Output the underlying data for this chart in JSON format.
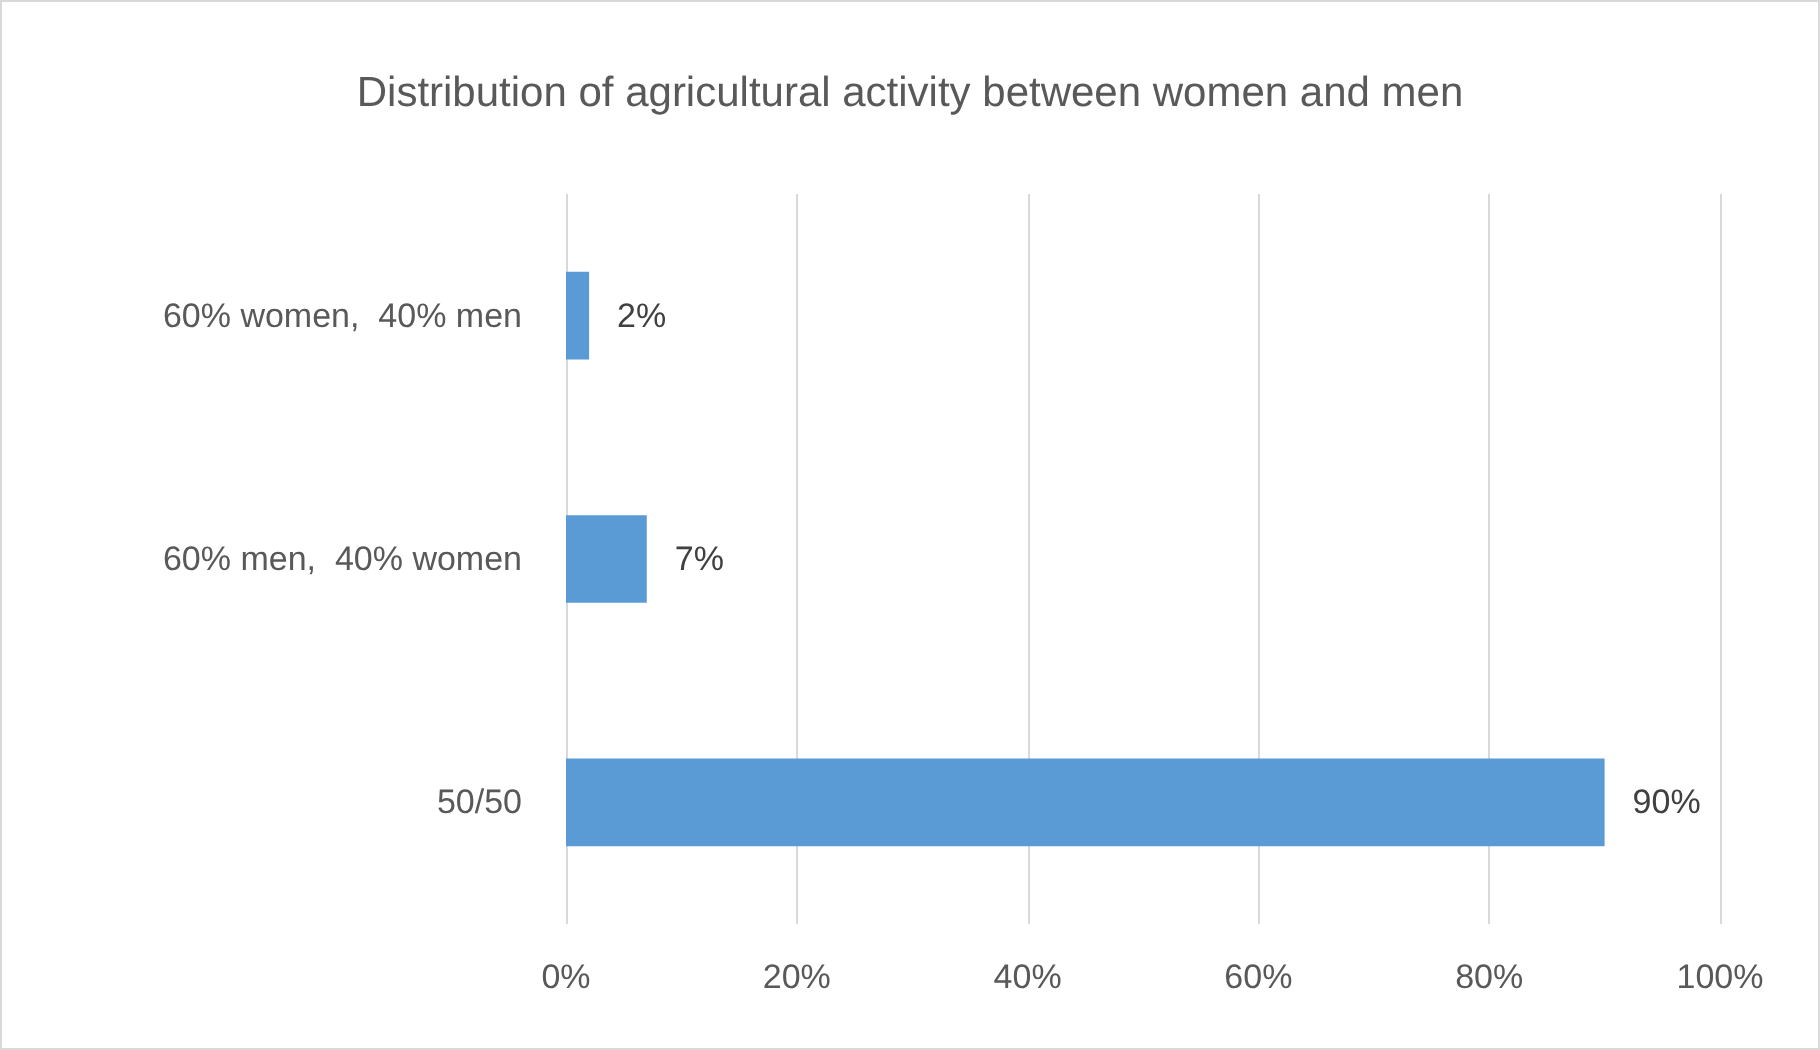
{
  "chart_data": {
    "type": "bar",
    "orientation": "horizontal",
    "title": "Distribution of agricultural activity between women and men",
    "categories": [
      "60% women,  40% men",
      "60% men,  40% women",
      "50/50"
    ],
    "values": [
      2,
      7,
      90
    ],
    "color": "#5b9bd5",
    "value_labels": [
      "2%",
      "7%",
      "90%"
    ],
    "xlim": [
      0,
      100
    ],
    "xticks": [
      {
        "value": 0,
        "label": "0%"
      },
      {
        "value": 20,
        "label": "20%"
      },
      {
        "value": 40,
        "label": "40%"
      },
      {
        "value": 60,
        "label": "60%"
      },
      {
        "value": 80,
        "label": "80%"
      },
      {
        "value": 100,
        "label": "100%"
      }
    ],
    "grid": "x"
  }
}
